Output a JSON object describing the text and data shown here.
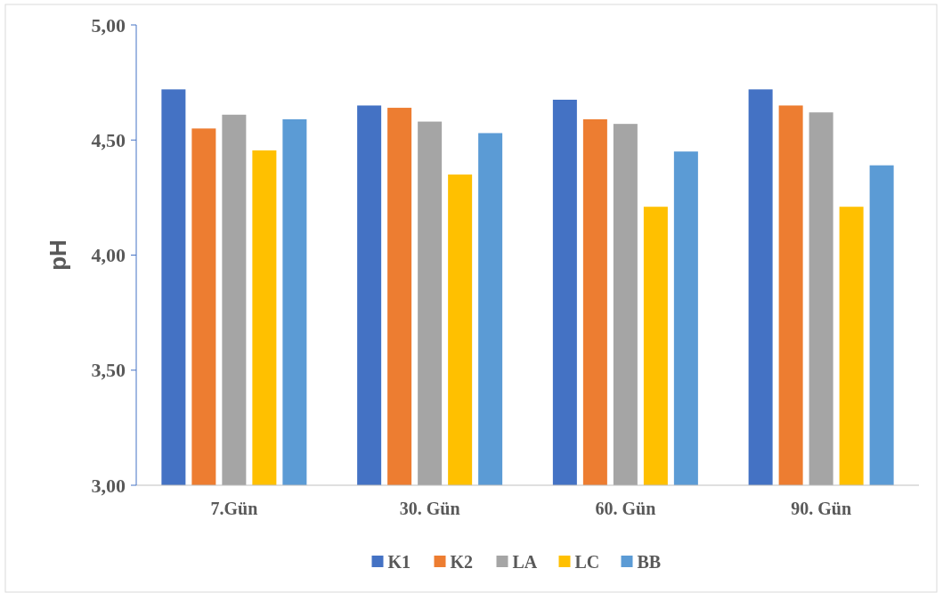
{
  "chart_data": {
    "type": "bar",
    "ylabel": "pH",
    "categories": [
      "7.Gün",
      "30. Gün",
      "60. Gün",
      "90. Gün"
    ],
    "series": [
      {
        "name": "K1",
        "color": "#4472c4",
        "values": [
          4.72,
          4.65,
          4.675,
          4.72
        ]
      },
      {
        "name": "K2",
        "color": "#ed7d31",
        "values": [
          4.55,
          4.64,
          4.59,
          4.65
        ]
      },
      {
        "name": "LA",
        "color": "#a5a5a5",
        "values": [
          4.61,
          4.58,
          4.57,
          4.62
        ]
      },
      {
        "name": "LC",
        "color": "#ffc000",
        "values": [
          4.455,
          4.35,
          4.21,
          4.21
        ]
      },
      {
        "name": "BB",
        "color": "#5b9bd5",
        "values": [
          4.59,
          4.53,
          4.45,
          4.39
        ]
      }
    ],
    "ylim": [
      3,
      5
    ],
    "yticks": [
      {
        "value": 3,
        "label": "3,00"
      },
      {
        "value": 3.5,
        "label": "3,50"
      },
      {
        "value": 4,
        "label": "4,00"
      },
      {
        "value": 4.5,
        "label": "4,50"
      },
      {
        "value": 5,
        "label": "5,00"
      }
    ],
    "grid": false,
    "legend": "bottom"
  }
}
